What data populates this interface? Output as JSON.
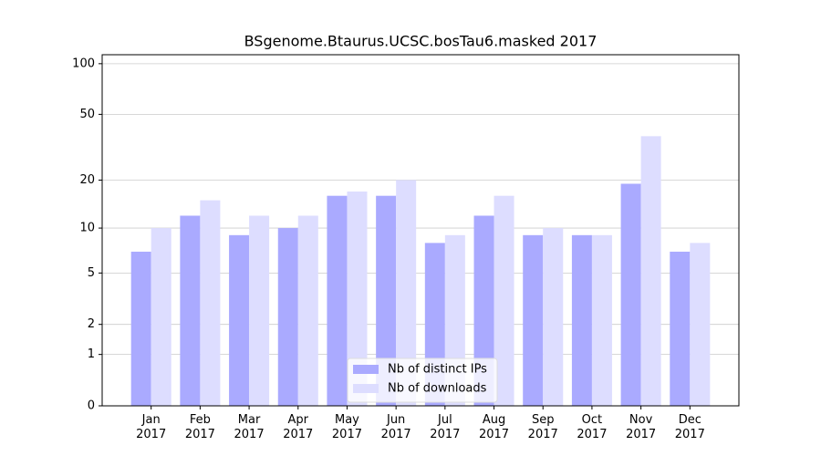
{
  "chart_data": {
    "type": "bar",
    "title": "BSgenome.Btaurus.UCSC.bosTau6.masked 2017",
    "categories": [
      "Jan\n2017",
      "Feb\n2017",
      "Mar\n2017",
      "Apr\n2017",
      "May\n2017",
      "Jun\n2017",
      "Jul\n2017",
      "Aug\n2017",
      "Sep\n2017",
      "Oct\n2017",
      "Nov\n2017",
      "Dec\n2017"
    ],
    "series": [
      {
        "name": "Nb of distinct IPs",
        "color": "#aaaaff",
        "values": [
          7,
          12,
          9,
          10,
          16,
          16,
          8,
          12,
          9,
          9,
          19,
          7
        ]
      },
      {
        "name": "Nb of downloads",
        "color": "#ddddff",
        "values": [
          10,
          15,
          12,
          12,
          17,
          20,
          9,
          16,
          10,
          9,
          37,
          8
        ]
      }
    ],
    "y_scale": "log1p",
    "ylim": [
      0,
      113
    ],
    "yticks": [
      0,
      1,
      2,
      5,
      10,
      20,
      50,
      100
    ],
    "grid": true,
    "legend": "lower center"
  }
}
